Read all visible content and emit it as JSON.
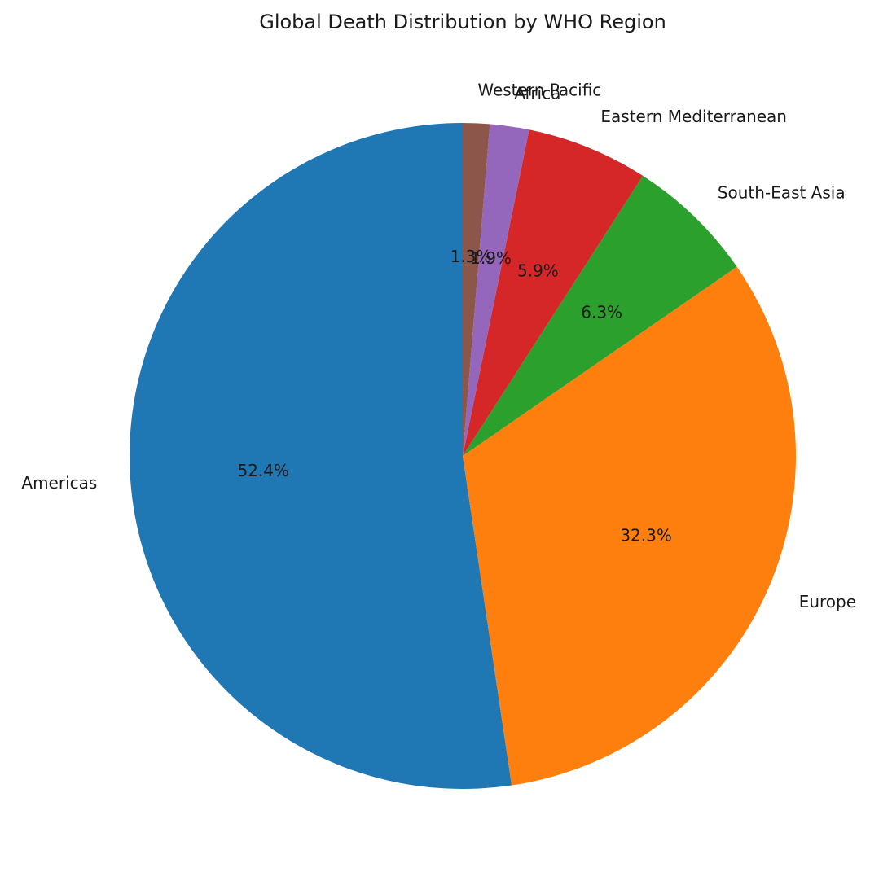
{
  "chart_data": {
    "type": "pie",
    "title": "Global Death Distribution by WHO Region",
    "start_angle_deg": 90,
    "direction": "counterclockwise",
    "slices": [
      {
        "label": "Americas",
        "value": 52.4,
        "pct_label": "52.4%",
        "color": "#1f77b4"
      },
      {
        "label": "Europe",
        "value": 32.3,
        "pct_label": "32.3%",
        "color": "#ff7f0e"
      },
      {
        "label": "South-East Asia",
        "value": 6.3,
        "pct_label": "6.3%",
        "color": "#2ca02c"
      },
      {
        "label": "Eastern Mediterranean",
        "value": 5.9,
        "pct_label": "5.9%",
        "color": "#d62728"
      },
      {
        "label": "Africa",
        "value": 1.9,
        "pct_label": "1.9%",
        "color": "#9467bd"
      },
      {
        "label": "Western Pacific",
        "value": 1.3,
        "pct_label": "1.3%",
        "color": "#8c564b"
      }
    ]
  }
}
